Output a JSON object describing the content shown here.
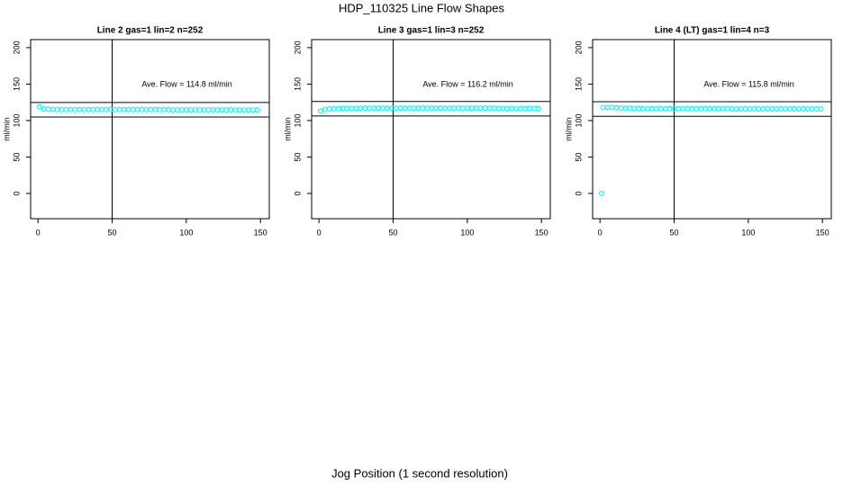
{
  "title": "HDP_110325  Line Flow Shapes",
  "x_label": "Jog Position (1 second resolution)",
  "chart_data": [
    {
      "type": "scatter",
      "title": "Line 2 gas=1 lin=2 n=252",
      "y_label": "ml/min",
      "annotation": "Ave. Flow =  114.8  ml/min",
      "color": "#00ffff",
      "xlim": [
        -4.96,
        155.96
      ],
      "ylim": [
        -34.6,
        211
      ],
      "xticks": [
        0,
        50,
        100,
        150
      ],
      "yticks": [
        0,
        50,
        100,
        150,
        200
      ],
      "hlines": [
        124.8,
        104.8
      ],
      "vlines": [
        50
      ],
      "x": [
        1,
        4,
        7,
        10,
        13,
        16,
        19,
        22,
        25,
        28,
        31,
        34,
        37,
        40,
        43,
        46,
        49,
        52,
        55,
        58,
        61,
        64,
        67,
        70,
        73,
        76,
        79,
        82,
        85,
        88,
        91,
        94,
        97,
        100,
        103,
        106,
        109,
        112,
        115,
        118,
        121,
        124,
        127,
        130,
        133,
        136,
        139,
        142,
        145,
        148
      ],
      "y": [
        119,
        116,
        115.5,
        115.2,
        115,
        115,
        115,
        115,
        115,
        115,
        115,
        115,
        115,
        115,
        115,
        115,
        115,
        115,
        115,
        115,
        115,
        115,
        115,
        115,
        115,
        115,
        115,
        115,
        115,
        115,
        114.8,
        114.8,
        114.8,
        114.8,
        114.8,
        114.8,
        114.8,
        114.8,
        114.8,
        114.8,
        114.7,
        114.7,
        114.7,
        114.7,
        114.7,
        114.6,
        114.6,
        114.6,
        114.6,
        114.6
      ]
    },
    {
      "type": "scatter",
      "title": "Line 3 gas=1 lin=3 n=252",
      "y_label": "ml/min",
      "annotation": "Ave. Flow =  116.2  ml/min",
      "color": "#00ffff",
      "xlim": [
        -4.96,
        155.96
      ],
      "ylim": [
        -34.6,
        211
      ],
      "xticks": [
        0,
        50,
        100,
        150
      ],
      "yticks": [
        0,
        50,
        100,
        150,
        200
      ],
      "hlines": [
        126.2,
        106.2
      ],
      "vlines": [
        50
      ],
      "x": [
        1,
        4,
        7,
        10,
        13,
        16,
        19,
        22,
        25,
        28,
        31,
        34,
        37,
        40,
        43,
        46,
        49,
        52,
        55,
        58,
        61,
        64,
        67,
        70,
        73,
        76,
        79,
        82,
        85,
        88,
        91,
        94,
        97,
        100,
        103,
        106,
        109,
        112,
        115,
        118,
        121,
        124,
        127,
        130,
        133,
        136,
        139,
        142,
        145,
        148
      ],
      "y": [
        113,
        115,
        116,
        116.3,
        116.5,
        116.6,
        116.7,
        116.8,
        116.8,
        116.8,
        117,
        117,
        117,
        117,
        117,
        117,
        117,
        117,
        117,
        117,
        117,
        117,
        117,
        117,
        117,
        117,
        117,
        117,
        117,
        117,
        117,
        117,
        117,
        117,
        117,
        117,
        117,
        117,
        117,
        117,
        116.8,
        116.8,
        116.8,
        116.8,
        116.8,
        116.6,
        116.6,
        116.6,
        116.6,
        116.6
      ]
    },
    {
      "type": "scatter",
      "title": "Line 4 (LT) gas=1 lin=4 n=3",
      "y_label": "ml/min",
      "annotation": "Ave. Flow =  115.8  ml/min",
      "color": "#00ffff",
      "xlim": [
        -4.96,
        155.96
      ],
      "ylim": [
        -34.6,
        211
      ],
      "xticks": [
        0,
        50,
        100,
        150
      ],
      "yticks": [
        0,
        50,
        100,
        150,
        200
      ],
      "hlines": [
        125.8,
        105.8
      ],
      "vlines": [
        50
      ],
      "x": [
        1,
        2,
        5,
        8,
        11,
        14,
        17,
        20,
        23,
        26,
        29,
        32,
        35,
        38,
        41,
        44,
        47,
        50,
        53,
        56,
        59,
        62,
        65,
        68,
        71,
        74,
        77,
        80,
        83,
        86,
        89,
        92,
        95,
        98,
        101,
        104,
        107,
        110,
        113,
        116,
        119,
        122,
        125,
        128,
        131,
        134,
        137,
        140,
        143,
        146,
        149
      ],
      "y": [
        0,
        118,
        118,
        117.8,
        117.5,
        117.3,
        117,
        117,
        116.8,
        116.6,
        116.3,
        116.3,
        116.3,
        116.3,
        116.3,
        116.3,
        116.3,
        116.3,
        116.3,
        116.3,
        116.3,
        116.3,
        116.3,
        116.3,
        116.3,
        116.3,
        116.3,
        116.3,
        116.3,
        116.3,
        116,
        116,
        116,
        116,
        116,
        116,
        116,
        116,
        116,
        116,
        116,
        116,
        116,
        116,
        116,
        116,
        116,
        116,
        116,
        116,
        116
      ]
    }
  ]
}
